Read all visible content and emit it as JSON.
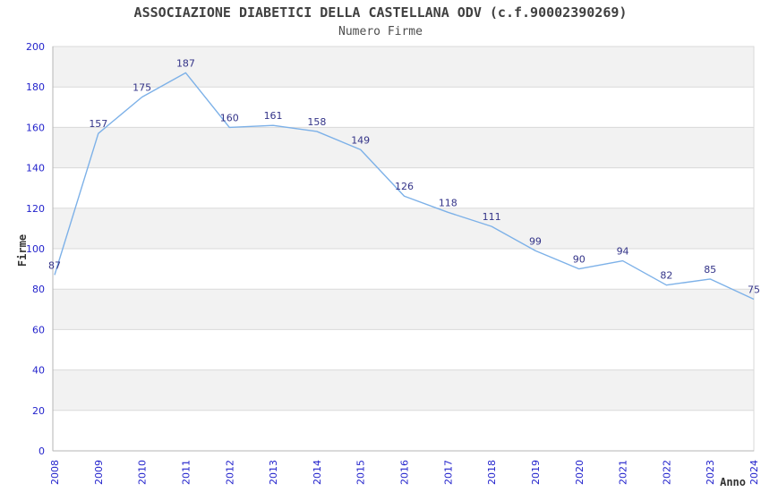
{
  "chart_data": {
    "type": "line",
    "title": "ASSOCIAZIONE DIABETICI DELLA CASTELLANA ODV (c.f.90002390269)",
    "subtitle": "Numero Firme",
    "xlabel": "Anno",
    "ylabel": "Firme",
    "categories": [
      "2008",
      "2009",
      "2010",
      "2011",
      "2012",
      "2013",
      "2014",
      "2015",
      "2016",
      "2017",
      "2018",
      "2019",
      "2020",
      "2021",
      "2022",
      "2023",
      "2024"
    ],
    "values": [
      87,
      157,
      175,
      187,
      160,
      161,
      158,
      149,
      126,
      118,
      111,
      99,
      90,
      94,
      82,
      85,
      75
    ],
    "ylim": [
      0,
      200
    ],
    "ytick_step": 20,
    "yticks": [
      0,
      20,
      40,
      60,
      80,
      100,
      120,
      140,
      160,
      180,
      200
    ],
    "grid": "horizontal",
    "background_bands": "alternating gray/white every 20 units, gray on 20-40, 60-80, 100-120, 140-160, 180-200",
    "legend_position": "none",
    "markers": "none",
    "x_tick_rotation": -90,
    "colors": {
      "line": "#7db1e8",
      "data_label": "#333388",
      "tick_label": "#2323cc",
      "grid": "#d9d9d9",
      "axis": "#b5b5b5",
      "band": "#f2f2f2",
      "plot_bg": "#ffffff",
      "title": "#404040",
      "subtitle": "#4d4d4d",
      "axis_title": "#333333"
    }
  }
}
